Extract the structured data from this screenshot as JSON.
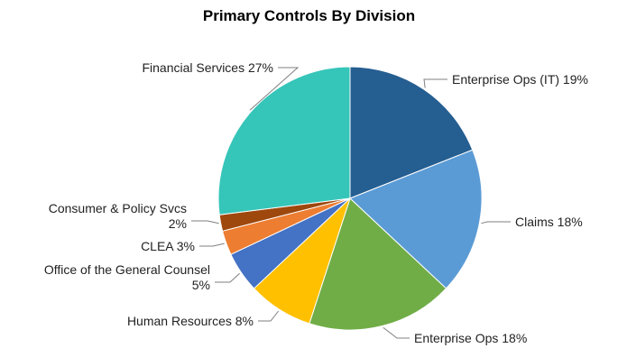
{
  "chart_data": {
    "type": "pie",
    "title": "Primary Controls By Division",
    "start_angle_deg": 0,
    "direction": "clockwise",
    "slices": [
      {
        "name": "Enterprise Ops (IT)",
        "value": 19,
        "label": "Enterprise Ops (IT) 19%",
        "color": "#255E91"
      },
      {
        "name": "Claims",
        "value": 18,
        "label": "Claims 18%",
        "color": "#5B9BD5"
      },
      {
        "name": "Enterprise Ops",
        "value": 18,
        "label": "Enterprise Ops 18%",
        "color": "#70AD47"
      },
      {
        "name": "Human Resources",
        "value": 8,
        "label": "Human Resources 8%",
        "color": "#FFC000"
      },
      {
        "name": "Office of the General Counsel",
        "value": 5,
        "label": "Office of the General Counsel 5%",
        "color": "#4472C4"
      },
      {
        "name": "CLEA",
        "value": 3,
        "label": "CLEA 3%",
        "color": "#ED7D31"
      },
      {
        "name": "Consumer & Policy Svcs",
        "value": 2,
        "label": "Consumer & Policy Svcs 2%",
        "color": "#9E480E"
      },
      {
        "name": "Financial Services",
        "value": 27,
        "label": "Financial Services 27%",
        "color": "#36C5B9"
      }
    ]
  }
}
